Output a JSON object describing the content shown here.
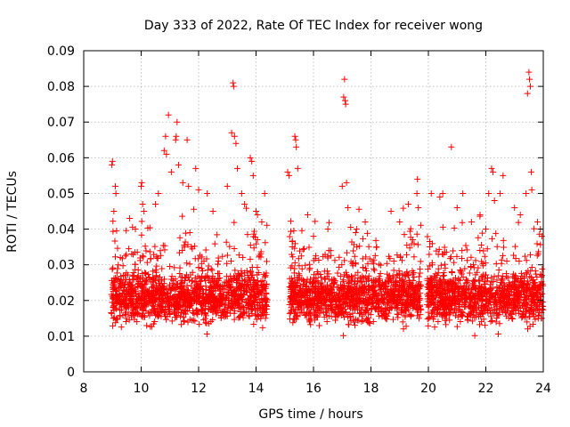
{
  "chart_data": {
    "type": "scatter",
    "title": "Day 333 of 2022, Rate Of TEC Index for receiver wong",
    "xlabel": "GPS time / hours",
    "ylabel": "ROTI / TECUs",
    "xlim": [
      8,
      24
    ],
    "ylim": [
      0,
      0.09
    ],
    "xticks": [
      8,
      10,
      12,
      14,
      16,
      18,
      20,
      22,
      24
    ],
    "yticks": [
      0,
      0.01,
      0.02,
      0.03,
      0.04,
      0.05,
      0.06,
      0.07,
      0.08,
      0.09
    ],
    "xtick_labels": [
      "8",
      "10",
      "12",
      "14",
      "16",
      "18",
      "20",
      "22",
      "24"
    ],
    "ytick_labels": [
      "0",
      "0.01",
      "0.02",
      "0.03",
      "0.04",
      "0.05",
      "0.06",
      "0.07",
      "0.08",
      "0.09"
    ],
    "grid": true,
    "marker": "+",
    "color": "#ff0000",
    "data_segments": [
      {
        "x_start": 8.95,
        "x_end": 14.4
      },
      {
        "x_start": 15.15,
        "x_end": 19.75
      },
      {
        "x_start": 19.95,
        "x_end": 24.0
      }
    ],
    "points": [
      [
        8.98,
        0.058
      ],
      [
        9.0,
        0.059
      ],
      [
        9.05,
        0.045
      ],
      [
        9.1,
        0.052
      ],
      [
        9.12,
        0.05
      ],
      [
        9.6,
        0.043
      ],
      [
        9.8,
        0.04
      ],
      [
        10.0,
        0.052
      ],
      [
        10.02,
        0.053
      ],
      [
        10.05,
        0.047
      ],
      [
        10.1,
        0.045
      ],
      [
        10.5,
        0.047
      ],
      [
        10.6,
        0.05
      ],
      [
        10.8,
        0.062
      ],
      [
        10.85,
        0.066
      ],
      [
        10.88,
        0.061
      ],
      [
        10.95,
        0.072
      ],
      [
        11.05,
        0.056
      ],
      [
        11.2,
        0.065
      ],
      [
        11.22,
        0.066
      ],
      [
        11.25,
        0.07
      ],
      [
        11.3,
        0.058
      ],
      [
        11.45,
        0.053
      ],
      [
        11.6,
        0.065
      ],
      [
        11.65,
        0.052
      ],
      [
        11.9,
        0.057
      ],
      [
        12.0,
        0.051
      ],
      [
        12.3,
        0.05
      ],
      [
        12.5,
        0.045
      ],
      [
        13.0,
        0.052
      ],
      [
        13.15,
        0.067
      ],
      [
        13.2,
        0.081
      ],
      [
        13.22,
        0.08
      ],
      [
        13.25,
        0.066
      ],
      [
        13.3,
        0.064
      ],
      [
        13.35,
        0.057
      ],
      [
        13.5,
        0.05
      ],
      [
        13.6,
        0.047
      ],
      [
        13.8,
        0.06
      ],
      [
        13.85,
        0.059
      ],
      [
        13.9,
        0.055
      ],
      [
        14.0,
        0.045
      ],
      [
        14.05,
        0.044
      ],
      [
        14.2,
        0.042
      ],
      [
        14.3,
        0.05
      ],
      [
        15.1,
        0.056
      ],
      [
        15.15,
        0.055
      ],
      [
        15.35,
        0.066
      ],
      [
        15.38,
        0.065
      ],
      [
        15.4,
        0.063
      ],
      [
        15.45,
        0.057
      ],
      [
        15.8,
        0.044
      ],
      [
        16.0,
        0.038
      ],
      [
        16.5,
        0.04
      ],
      [
        17.0,
        0.052
      ],
      [
        17.05,
        0.077
      ],
      [
        17.08,
        0.082
      ],
      [
        17.1,
        0.076
      ],
      [
        17.12,
        0.075
      ],
      [
        17.15,
        0.053
      ],
      [
        17.2,
        0.046
      ],
      [
        17.5,
        0.04
      ],
      [
        17.8,
        0.042
      ],
      [
        18.2,
        0.035
      ],
      [
        18.7,
        0.045
      ],
      [
        19.0,
        0.042
      ],
      [
        19.3,
        0.047
      ],
      [
        19.6,
        0.05
      ],
      [
        19.62,
        0.054
      ],
      [
        19.65,
        0.046
      ],
      [
        20.1,
        0.05
      ],
      [
        20.4,
        0.049
      ],
      [
        20.5,
        0.05
      ],
      [
        20.8,
        0.063
      ],
      [
        21.0,
        0.046
      ],
      [
        21.2,
        0.05
      ],
      [
        21.5,
        0.042
      ],
      [
        21.8,
        0.044
      ],
      [
        22.0,
        0.04
      ],
      [
        22.1,
        0.05
      ],
      [
        22.2,
        0.057
      ],
      [
        22.25,
        0.056
      ],
      [
        22.3,
        0.048
      ],
      [
        22.5,
        0.05
      ],
      [
        22.6,
        0.055
      ],
      [
        23.0,
        0.046
      ],
      [
        23.2,
        0.044
      ],
      [
        23.4,
        0.05
      ],
      [
        23.45,
        0.078
      ],
      [
        23.5,
        0.084
      ],
      [
        23.52,
        0.082
      ],
      [
        23.55,
        0.08
      ],
      [
        23.58,
        0.056
      ],
      [
        23.6,
        0.051
      ],
      [
        23.8,
        0.042
      ],
      [
        23.9,
        0.04
      ],
      [
        23.95,
        0.038
      ]
    ]
  }
}
